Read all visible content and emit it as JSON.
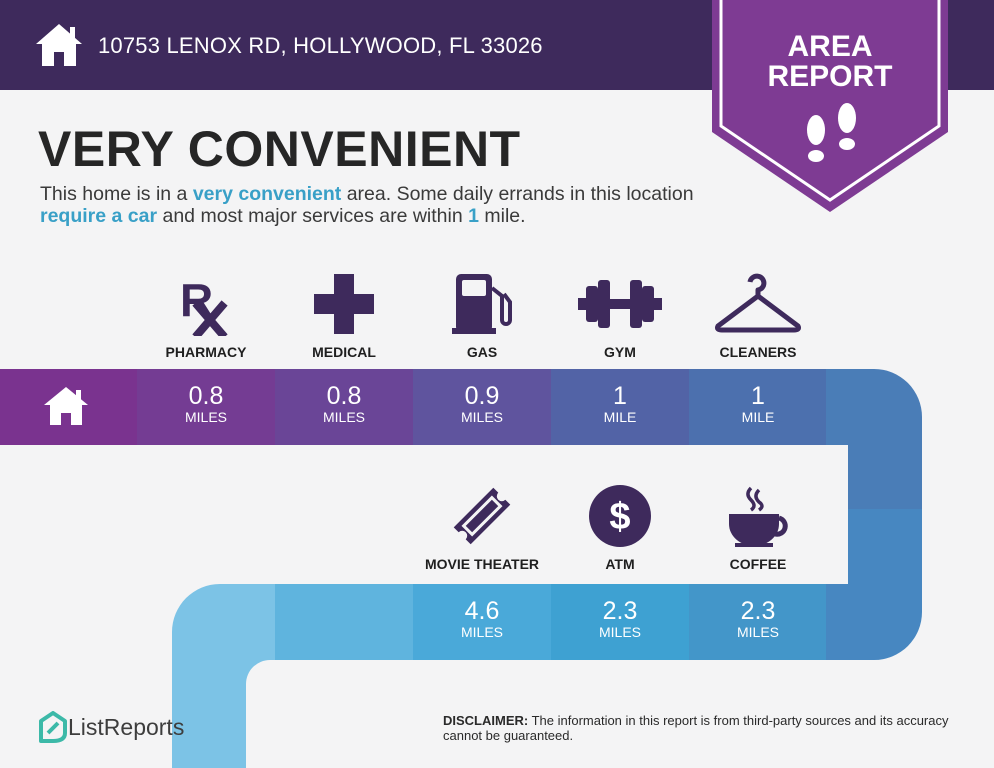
{
  "header": {
    "address": "10753 LENOX RD, HOLLYWOOD, FL 33026",
    "home_icon": "house-icon",
    "background": "#3e2a5c"
  },
  "badge": {
    "line1": "AREA",
    "line2": "REPORT",
    "icon": "footprints-icon",
    "color": "#7e3b93"
  },
  "headline": "VERY CONVENIENT",
  "summary": {
    "part1": "This home is in a ",
    "hl1": "very convenient",
    "part2": " area. Some daily errands in this location ",
    "hl2": "require a car",
    "part3": " and most major services are within ",
    "hl3": "1",
    "part4": " mile.",
    "highlight_color": "#39a0c7"
  },
  "row1": [
    {
      "label": "PHARMACY",
      "icon": "rx-icon",
      "distance": "0.8",
      "unit": "MILES"
    },
    {
      "label": "MEDICAL",
      "icon": "medical-cross-icon",
      "distance": "0.8",
      "unit": "MILES"
    },
    {
      "label": "GAS",
      "icon": "gas-pump-icon",
      "distance": "0.9",
      "unit": "MILES"
    },
    {
      "label": "GYM",
      "icon": "dumbbell-icon",
      "distance": "1",
      "unit": "MILE"
    },
    {
      "label": "CLEANERS",
      "icon": "hanger-icon",
      "distance": "1",
      "unit": "MILE"
    }
  ],
  "row2": [
    {
      "label": "MOVIE THEATER",
      "icon": "ticket-icon",
      "distance": "4.6",
      "unit": "MILES"
    },
    {
      "label": "ATM",
      "icon": "dollar-icon",
      "distance": "2.3",
      "unit": "MILES"
    },
    {
      "label": "COFFEE",
      "icon": "coffee-cup-icon",
      "distance": "2.3",
      "unit": "MILES"
    }
  ],
  "footer": {
    "logo_text": "ListReports",
    "disclaimer_label": "DISCLAIMER:",
    "disclaimer_text": " The information in this report is from third-party sources and its accuracy cannot be guaranteed."
  },
  "icon_color": "#3e2a5c"
}
